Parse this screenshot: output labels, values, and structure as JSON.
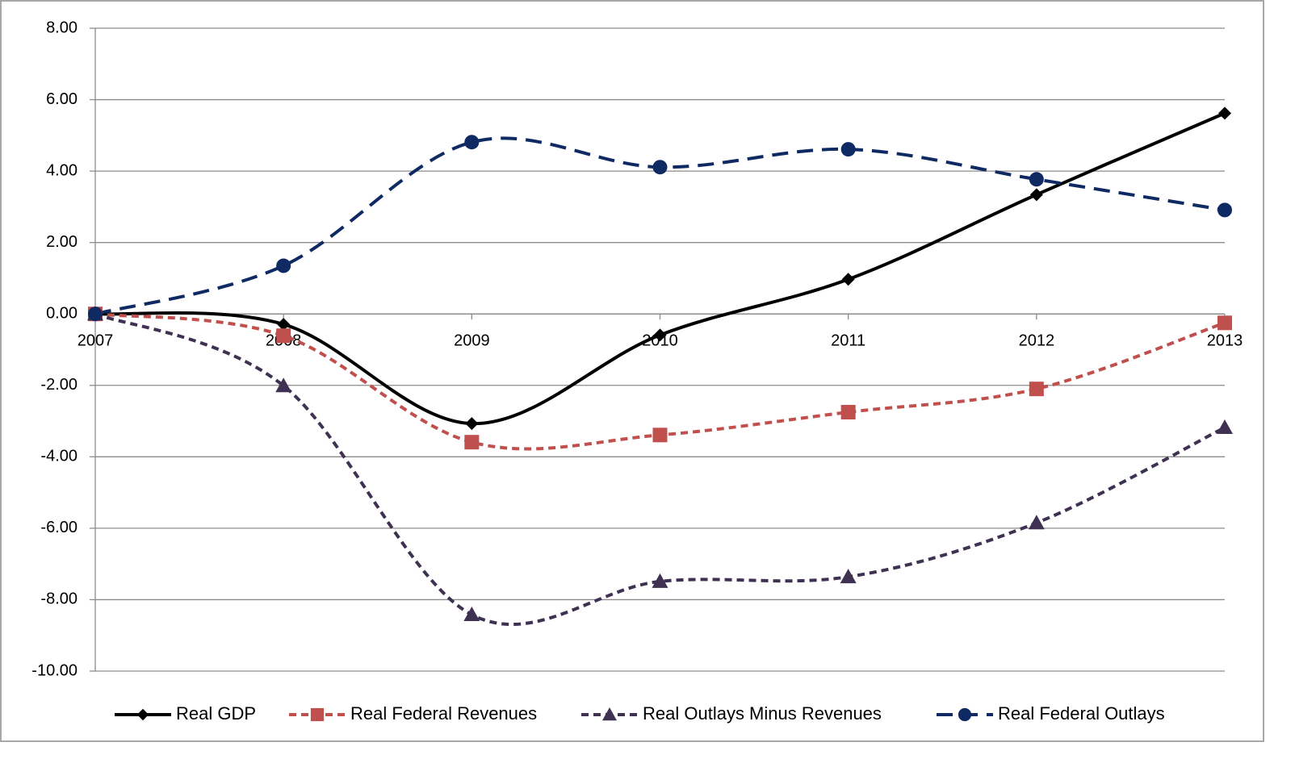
{
  "chart_data": {
    "type": "line",
    "categories": [
      "2007",
      "2008",
      "2009",
      "2010",
      "2011",
      "2012",
      "2013"
    ],
    "series": [
      {
        "name": "Real GDP",
        "color": "#000000",
        "marker": "diamond",
        "dash": "solid",
        "values": [
          0,
          -0.29,
          -3.07,
          -0.59,
          0.97,
          3.34,
          5.62
        ]
      },
      {
        "name": "Real Federal Revenues",
        "color": "#c0504d",
        "marker": "square",
        "dash": "short",
        "values": [
          0,
          -0.61,
          -3.59,
          -3.39,
          -2.75,
          -2.1,
          -0.25
        ]
      },
      {
        "name": "Real Outlays Minus Revenues",
        "color": "#3f3151",
        "marker": "triangle",
        "dash": "short",
        "values": [
          0,
          -2.01,
          -8.42,
          -7.49,
          -7.36,
          -5.85,
          -3.18
        ]
      },
      {
        "name": "Real Federal Outlays",
        "color": "#0f2a63",
        "marker": "circle",
        "dash": "long",
        "values": [
          0,
          1.35,
          4.81,
          4.11,
          4.61,
          3.77,
          2.91
        ]
      }
    ],
    "ylim": [
      -10,
      8
    ],
    "yticks": [
      {
        "value": -10,
        "label": "-10.00"
      },
      {
        "value": -8,
        "label": "-8.00"
      },
      {
        "value": -6,
        "label": "-6.00"
      },
      {
        "value": -4,
        "label": "-4.00"
      },
      {
        "value": -2,
        "label": "-2.00"
      },
      {
        "value": 0,
        "label": "0.00"
      },
      {
        "value": 2,
        "label": "2.00"
      },
      {
        "value": 4,
        "label": "4.00"
      },
      {
        "value": 6,
        "label": "6.00"
      },
      {
        "value": 8,
        "label": "8.00"
      }
    ],
    "grid": true,
    "smooth": true,
    "legend": "bottom"
  }
}
